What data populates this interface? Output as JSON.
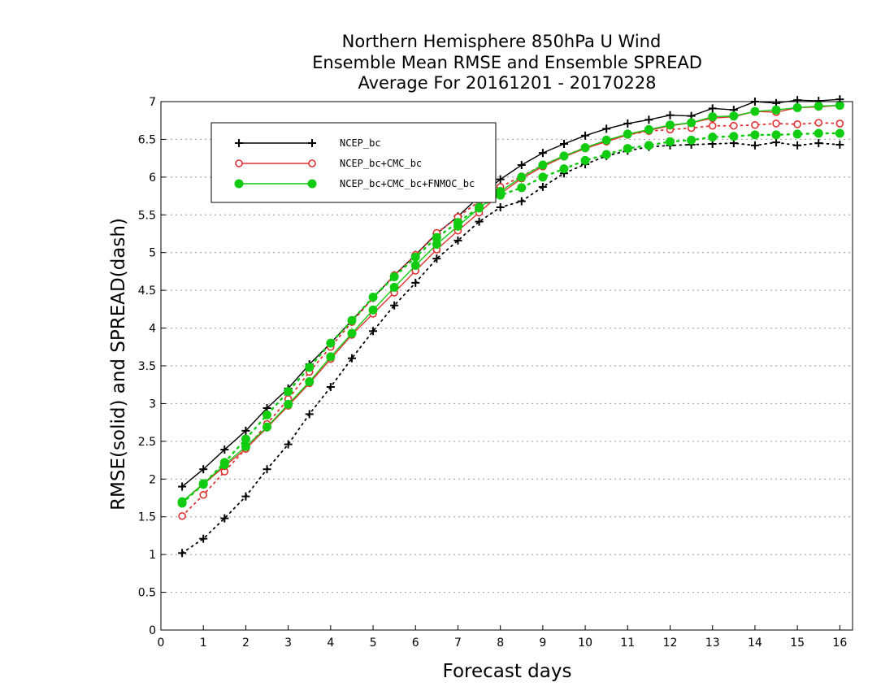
{
  "chart_data": {
    "type": "line",
    "title": [
      "Northern Hemisphere 850hPa U Wind",
      "Ensemble Mean RMSE and Ensemble SPREAD",
      "Average For 20161201 - 20170228"
    ],
    "xlabel": "Forecast days",
    "ylabel": "RMSE(solid) and SPREAD(dash)",
    "xlim": [
      0,
      16.3
    ],
    "ylim": [
      0,
      7
    ],
    "xticks": [
      "0",
      "1",
      "2",
      "3",
      "4",
      "5",
      "6",
      "7",
      "8",
      "9",
      "10",
      "11",
      "12",
      "13",
      "14",
      "15",
      "16"
    ],
    "yticks": [
      "0",
      "0.5",
      "1",
      "1.5",
      "2",
      "2.5",
      "3",
      "3.5",
      "4",
      "4.5",
      "5",
      "5.5",
      "6",
      "6.5",
      "7"
    ],
    "grid": "horizontal dotted",
    "legend_position": "top-left",
    "x": [
      0.5,
      1,
      1.5,
      2,
      2.5,
      3,
      3.5,
      4,
      4.5,
      5,
      5.5,
      6,
      6.5,
      7,
      7.5,
      8,
      8.5,
      9,
      9.5,
      10,
      10.5,
      11,
      11.5,
      12,
      12.5,
      13,
      13.5,
      14,
      14.5,
      15,
      15.5,
      16
    ],
    "series": [
      {
        "name": "NCEP_bc",
        "color": "#000000",
        "marker": "plus",
        "rmse": [
          1.9,
          2.13,
          2.39,
          2.64,
          2.94,
          3.2,
          3.52,
          3.8,
          4.1,
          4.4,
          4.7,
          4.97,
          5.25,
          5.48,
          5.74,
          5.97,
          6.16,
          6.32,
          6.44,
          6.55,
          6.64,
          6.71,
          6.76,
          6.82,
          6.81,
          6.91,
          6.89,
          7.0,
          6.98,
          7.02,
          7.01,
          7.03
        ],
        "spread": [
          1.02,
          1.21,
          1.48,
          1.77,
          2.13,
          2.46,
          2.86,
          3.22,
          3.6,
          3.96,
          4.3,
          4.6,
          4.92,
          5.16,
          5.41,
          5.6,
          5.68,
          5.87,
          6.05,
          6.17,
          6.28,
          6.35,
          6.4,
          6.42,
          6.43,
          6.44,
          6.45,
          6.42,
          6.46,
          6.42,
          6.45,
          6.43
        ]
      },
      {
        "name": "NCEP_bc+CMC_bc",
        "color": "#e03030",
        "marker": "open-circle",
        "rmse": [
          1.7,
          1.93,
          2.17,
          2.4,
          2.68,
          2.97,
          3.27,
          3.59,
          3.91,
          4.19,
          4.47,
          4.76,
          5.04,
          5.29,
          5.53,
          5.78,
          5.98,
          6.14,
          6.27,
          6.38,
          6.47,
          6.56,
          6.62,
          6.68,
          6.72,
          6.78,
          6.8,
          6.87,
          6.86,
          6.92,
          6.93,
          6.95
        ],
        "spread": [
          1.51,
          1.79,
          2.1,
          2.4,
          2.73,
          3.06,
          3.42,
          3.75,
          4.08,
          4.4,
          4.7,
          4.97,
          5.26,
          5.47,
          5.68,
          5.87,
          6.01,
          6.16,
          6.28,
          6.39,
          6.48,
          6.56,
          6.61,
          6.63,
          6.65,
          6.68,
          6.68,
          6.69,
          6.71,
          6.7,
          6.72,
          6.71
        ]
      },
      {
        "name": "NCEP_bc+CMC_bc+FNMOC_bc",
        "color": "#11cc11",
        "marker": "filled-circle",
        "rmse": [
          1.7,
          1.94,
          2.19,
          2.43,
          2.69,
          2.99,
          3.29,
          3.62,
          3.93,
          4.24,
          4.54,
          4.83,
          5.11,
          5.35,
          5.59,
          5.81,
          6.0,
          6.16,
          6.28,
          6.39,
          6.49,
          6.57,
          6.63,
          6.69,
          6.72,
          6.8,
          6.81,
          6.87,
          6.89,
          6.92,
          6.94,
          6.95
        ],
        "spread": [
          1.68,
          1.93,
          2.22,
          2.53,
          2.85,
          3.16,
          3.48,
          3.8,
          4.1,
          4.41,
          4.68,
          4.94,
          5.2,
          5.4,
          5.6,
          5.76,
          5.86,
          6.0,
          6.11,
          6.22,
          6.3,
          6.38,
          6.42,
          6.47,
          6.49,
          6.53,
          6.54,
          6.56,
          6.56,
          6.57,
          6.58,
          6.58
        ]
      }
    ]
  }
}
